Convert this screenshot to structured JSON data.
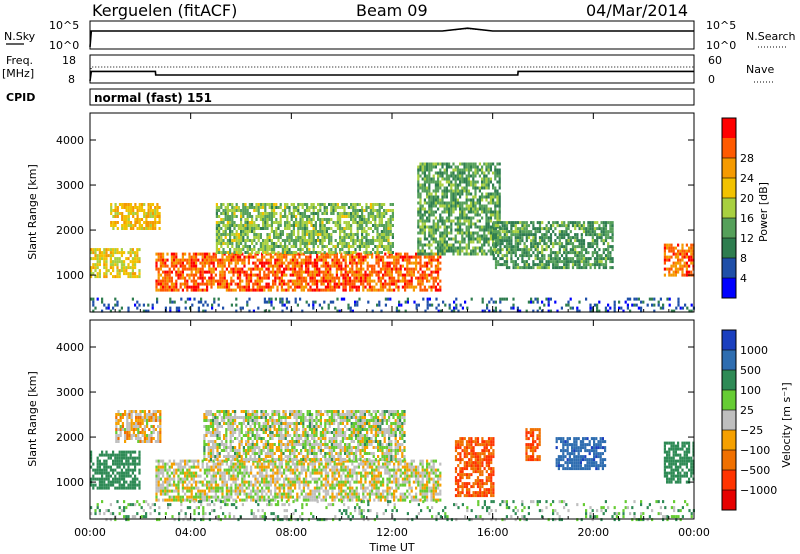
{
  "header": {
    "station": "Kerguelen (fitACF)",
    "beam": "Beam 09",
    "date": "04/Mar/2014"
  },
  "noise_panel": {
    "left_label": "N.Sky",
    "right_label": "N.Search",
    "left_ticks": [
      "10^5",
      "10^0"
    ],
    "right_ticks": [
      "10^5",
      "10^0"
    ]
  },
  "freq_panel": {
    "left_label_1": "Freq.",
    "left_label_2": "[MHz]",
    "right_label": "Nave",
    "left_ticks": [
      "18",
      "8"
    ],
    "right_ticks": [
      "60",
      "0"
    ]
  },
  "cpid_panel": {
    "label": "CPID",
    "value": "normal (fast) 151"
  },
  "time_axis": {
    "label": "Time UT",
    "ticks": [
      "00:00",
      "04:00",
      "08:00",
      "12:00",
      "16:00",
      "20:00",
      "00:00"
    ]
  },
  "range_axis": {
    "label": "Slant Range [km]",
    "ticks": [
      "1000",
      "2000",
      "3000",
      "4000"
    ]
  },
  "power_scale": {
    "label": "Power [dB]",
    "ticks": [
      "4",
      "8",
      "12",
      "16",
      "20",
      "24",
      "28"
    ],
    "colors": [
      "#0000ff",
      "#1f4fa8",
      "#2e7d4f",
      "#55a05a",
      "#a8d040",
      "#f2c200",
      "#f59a00",
      "#ff5a00",
      "#ff0000"
    ]
  },
  "velocity_scale": {
    "label": "Velocity [m s⁻¹]",
    "ticks": [
      "1000",
      "500",
      "100",
      "25",
      "−25",
      "−100",
      "−500",
      "−1000"
    ],
    "colors": [
      "#1a3fbf",
      "#2e6db0",
      "#2e8a55",
      "#66cc33",
      "#bfbfbf",
      "#f5a000",
      "#f07000",
      "#ff3300",
      "#e60000"
    ]
  },
  "chart_data": [
    {
      "type": "line",
      "title": "N.Sky / N.Search",
      "x_unit": "hours UT",
      "x": [
        0,
        0.05,
        14,
        15,
        16,
        24
      ],
      "series": [
        {
          "name": "N.Sky",
          "values": [
            1,
            3000,
            3000,
            12000,
            3000,
            3000
          ]
        },
        {
          "name": "N.Search",
          "values": [
            1,
            3000,
            3000,
            10000,
            3000,
            3000
          ]
        }
      ],
      "ylim": [
        1,
        100000
      ],
      "yscale": "log"
    },
    {
      "type": "line",
      "title": "Freq. [MHz] / Nave",
      "x_unit": "hours UT",
      "x": [
        0,
        0.05,
        2.6,
        2.61,
        17,
        17.01,
        24
      ],
      "series": [
        {
          "name": "Freq.",
          "values": [
            0,
            12.0,
            12.0,
            10.5,
            10.5,
            12.0,
            12.0
          ]
        },
        {
          "name": "Nave",
          "values": [
            0,
            35,
            35,
            35,
            35,
            35,
            35
          ]
        }
      ],
      "ylim": [
        8,
        18
      ]
    },
    {
      "type": "heatmap",
      "title": "Power [dB]",
      "xlabel": "Time UT",
      "ylabel": "Slant Range [km]",
      "xlim": [
        0,
        24
      ],
      "ylim": [
        180,
        4600
      ],
      "zlim": [
        0,
        30
      ],
      "regions": [
        {
          "t0": 0.0,
          "t1": 2.0,
          "r0": 950,
          "r1": 1600,
          "power": 18
        },
        {
          "t0": 0.8,
          "t1": 2.8,
          "r0": 2050,
          "r1": 2600,
          "power": 20
        },
        {
          "t0": 2.6,
          "t1": 13.9,
          "r0": 700,
          "r1": 1500,
          "power": 26
        },
        {
          "t0": 5.0,
          "t1": 12.0,
          "r0": 1500,
          "r1": 2600,
          "power": 14
        },
        {
          "t0": 13.0,
          "t1": 16.3,
          "r0": 1500,
          "r1": 3500,
          "power": 12
        },
        {
          "t0": 16.0,
          "t1": 20.8,
          "r0": 1200,
          "r1": 2200,
          "power": 11
        },
        {
          "t0": 22.8,
          "t1": 24.0,
          "r0": 1000,
          "r1": 1700,
          "power": 25
        },
        {
          "t0": 0.0,
          "t1": 24.0,
          "r0": 200,
          "r1": 500,
          "power": 6
        }
      ]
    },
    {
      "type": "heatmap",
      "title": "Velocity [m s⁻¹]",
      "xlabel": "Time UT",
      "ylabel": "Slant Range [km]",
      "xlim": [
        0,
        24
      ],
      "ylim": [
        180,
        4600
      ],
      "zlim": [
        -1000,
        1000
      ],
      "regions": [
        {
          "t0": 0.0,
          "t1": 2.0,
          "r0": 900,
          "r1": 1700,
          "velocity": 150
        },
        {
          "t0": 1.0,
          "t1": 2.8,
          "r0": 1900,
          "r1": 2600,
          "velocity": -20
        },
        {
          "t0": 2.6,
          "t1": 13.9,
          "r0": 600,
          "r1": 1500,
          "velocity": 0
        },
        {
          "t0": 4.5,
          "t1": 12.5,
          "r0": 1500,
          "r1": 2600,
          "velocity": 10
        },
        {
          "t0": 14.5,
          "t1": 16.0,
          "r0": 700,
          "r1": 2000,
          "velocity": -300
        },
        {
          "t0": 17.3,
          "t1": 17.9,
          "r0": 1500,
          "r1": 2200,
          "velocity": -300
        },
        {
          "t0": 18.5,
          "t1": 20.5,
          "r0": 1300,
          "r1": 2000,
          "velocity": 700
        },
        {
          "t0": 22.8,
          "t1": 24.0,
          "r0": 1000,
          "r1": 1900,
          "velocity": 120
        },
        {
          "t0": 0.0,
          "t1": 24.0,
          "r0": 200,
          "r1": 600,
          "velocity": 50
        }
      ]
    }
  ]
}
